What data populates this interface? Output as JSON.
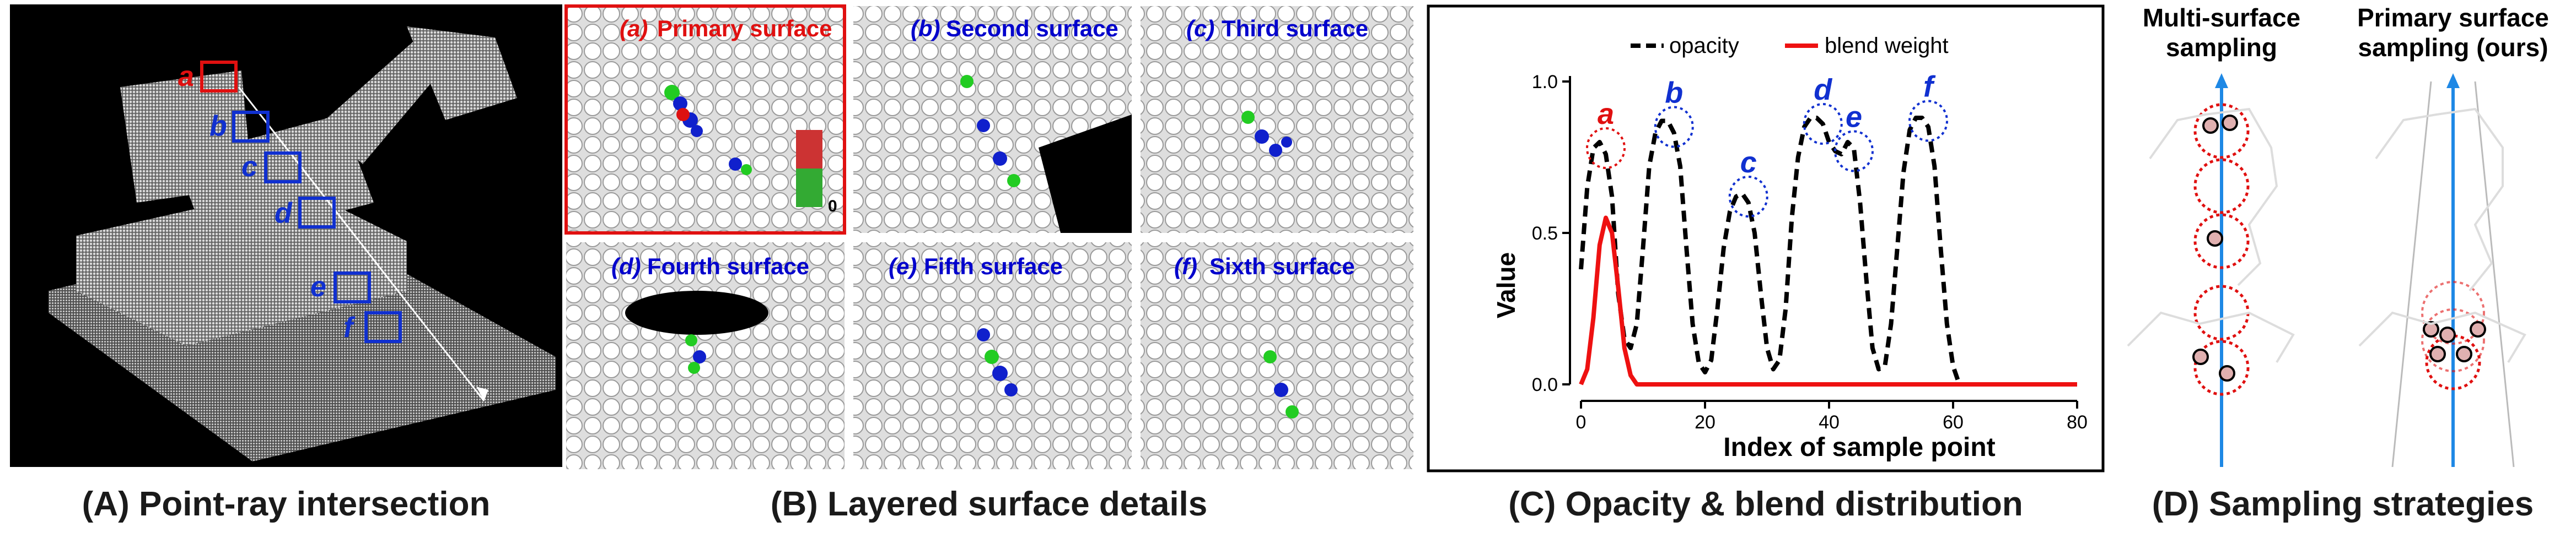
{
  "captions": {
    "a": "(A) Point-ray intersection",
    "b": "(B) Layered surface details",
    "c": "(C) Opacity & blend distribution",
    "d": "(D) Sampling strategies"
  },
  "panel_a": {
    "markers": [
      "a",
      "b",
      "c",
      "d",
      "e",
      "f"
    ]
  },
  "panel_b": {
    "tiles": [
      {
        "letter": "(a)",
        "name": "Primary surface"
      },
      {
        "letter": "(b)",
        "name": "Second surface"
      },
      {
        "letter": "(c)",
        "name": "Third surface"
      },
      {
        "letter": "(d)",
        "name": "Fourth surface"
      },
      {
        "letter": "(e)",
        "name": "Fifth surface"
      },
      {
        "letter": "(f)",
        "name": "Sixth surface"
      }
    ],
    "colorbar_min": "0"
  },
  "panel_d": {
    "left_title_1": "Multi-surface",
    "left_title_2": "sampling",
    "right_title_1": "Primary surface",
    "right_title_2": "sampling (ours)"
  },
  "colors": {
    "opacity": "#000000",
    "blend": "#ee1111",
    "box_primary": "#e01010",
    "box_other": "#1030d0",
    "ray": "#1e88e5"
  },
  "chart_data": {
    "type": "line",
    "title": "",
    "xlabel": "Index of sample point",
    "ylabel": "Value",
    "xlim": [
      0,
      80
    ],
    "ylim": [
      0,
      1.0
    ],
    "xticks": [
      0,
      20,
      40,
      60,
      80
    ],
    "yticks": [
      "0.0",
      "0.5",
      "1.0"
    ],
    "legend_position": "top",
    "series": [
      {
        "name": "opacity",
        "style": "dashed",
        "x": [
          0,
          1,
          2,
          3,
          4,
          5,
          6,
          7,
          8,
          9,
          10,
          11,
          12,
          13,
          14,
          15,
          16,
          17,
          18,
          19,
          20,
          21,
          22,
          23,
          24,
          25,
          26,
          27,
          28,
          29,
          30,
          31,
          32,
          33,
          34,
          35,
          36,
          37,
          38,
          39,
          40,
          41,
          42,
          43,
          44,
          45,
          46,
          47,
          48,
          49,
          50,
          51,
          52,
          53,
          54,
          55,
          56,
          57,
          58,
          59,
          60,
          61,
          62,
          63,
          64,
          65,
          66,
          67,
          68,
          69,
          70,
          71,
          72,
          73,
          74,
          75,
          76,
          77,
          78,
          79,
          80
        ],
        "values": [
          0.38,
          0.65,
          0.78,
          0.8,
          0.76,
          0.62,
          0.3,
          0.15,
          0.12,
          0.2,
          0.45,
          0.72,
          0.83,
          0.87,
          0.87,
          0.83,
          0.72,
          0.45,
          0.2,
          0.07,
          0.04,
          0.08,
          0.25,
          0.45,
          0.57,
          0.62,
          0.63,
          0.6,
          0.5,
          0.3,
          0.12,
          0.05,
          0.08,
          0.25,
          0.55,
          0.75,
          0.85,
          0.88,
          0.88,
          0.86,
          0.8,
          0.77,
          0.76,
          0.8,
          0.78,
          0.6,
          0.35,
          0.12,
          0.05,
          0.06,
          0.2,
          0.45,
          0.7,
          0.84,
          0.88,
          0.88,
          0.85,
          0.72,
          0.45,
          0.2,
          0.06,
          0.0,
          0.0,
          0.0,
          0.0,
          0.0,
          0.0,
          0.0,
          0.0,
          0.0,
          0.0,
          0.0,
          0.0,
          0.0,
          0.0,
          0.0,
          0.0,
          0.0,
          0.0,
          0.0,
          0.0
        ]
      },
      {
        "name": "blend weight",
        "style": "solid",
        "x": [
          0,
          1,
          2,
          3,
          4,
          5,
          6,
          7,
          8,
          9,
          10,
          12,
          20,
          30,
          40,
          50,
          60,
          65,
          80
        ],
        "values": [
          0.0,
          0.05,
          0.22,
          0.46,
          0.55,
          0.5,
          0.32,
          0.12,
          0.03,
          0.0,
          0.0,
          0.0,
          0.0,
          0.0,
          0.0,
          0.0,
          0.0,
          0.0,
          0.0
        ]
      }
    ],
    "annotations": [
      {
        "label": "a",
        "x": 3,
        "y": 0.78,
        "color": "red"
      },
      {
        "label": "b",
        "x": 14,
        "y": 0.85,
        "color": "blue"
      },
      {
        "label": "c",
        "x": 26,
        "y": 0.62,
        "color": "blue"
      },
      {
        "label": "d",
        "x": 38,
        "y": 0.86,
        "color": "blue"
      },
      {
        "label": "e",
        "x": 43,
        "y": 0.77,
        "color": "blue"
      },
      {
        "label": "f",
        "x": 55,
        "y": 0.87,
        "color": "blue"
      }
    ]
  }
}
